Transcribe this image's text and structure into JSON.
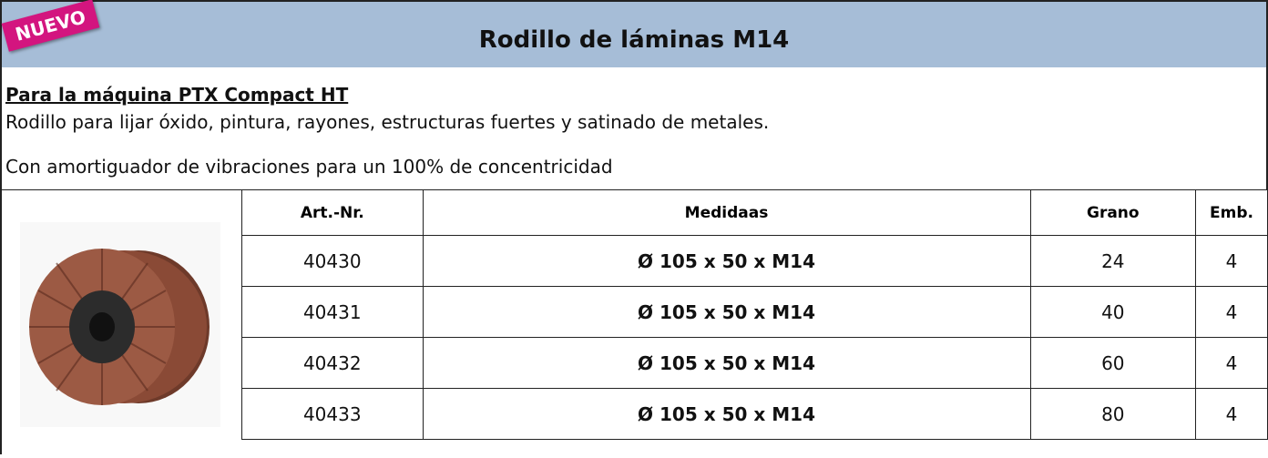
{
  "header": {
    "badge": "NUEVO",
    "title": "Rodillo de láminas M14"
  },
  "intro": {
    "subtitle": "Para la máquina PTX Compact HT",
    "lines": [
      "Rodillo para lijar óxido, pintura, rayones, estructuras fuertes y satinado de metales.",
      "Con amortiguador de vibraciones para un 100% de concentricidad"
    ]
  },
  "table": {
    "columns": [
      "Art.-Nr.",
      "Medidaas",
      "Grano",
      "Emb."
    ],
    "rows": [
      [
        "40430",
        "Ø 105 x 50 x M14",
        "24",
        "4"
      ],
      [
        "40431",
        "Ø 105 x 50 x M14",
        "40",
        "4"
      ],
      [
        "40432",
        "Ø 105 x 50 x M14",
        "60",
        "4"
      ],
      [
        "40433",
        "Ø 105 x 50 x M14",
        "80",
        "4"
      ]
    ]
  }
}
